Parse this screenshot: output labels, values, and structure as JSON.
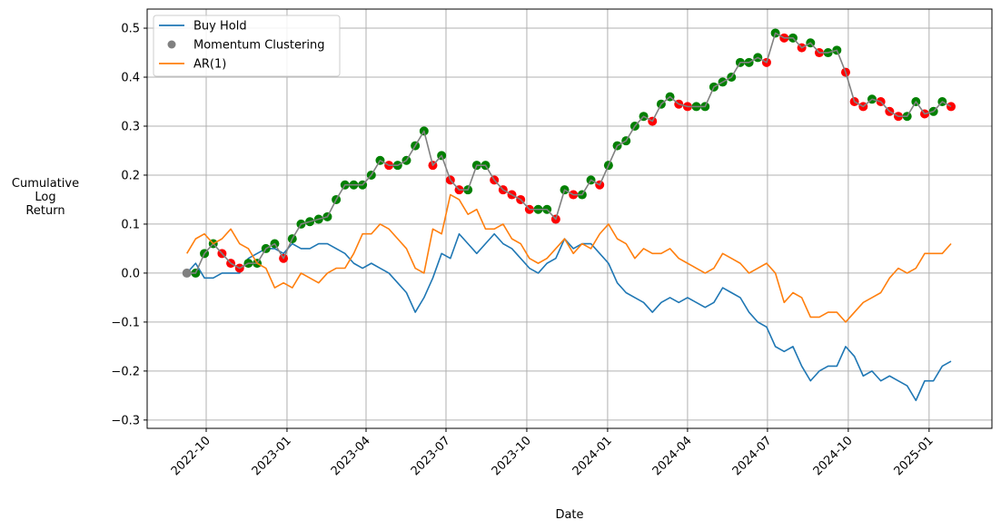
{
  "chart_data": {
    "type": "line",
    "title": "",
    "xlabel": "Date",
    "ylabel": "Cumulative\nLog\nReturn",
    "ylim": [
      -0.317,
      0.539
    ],
    "xlim": [
      "2022-08-20",
      "2025-02-10"
    ],
    "grid": true,
    "legend_position": "top-left",
    "start_date": "2022-09-09",
    "step_days": 10,
    "yticks": [
      -0.3,
      -0.2,
      -0.1,
      0.0,
      0.1,
      0.2,
      0.3,
      0.4,
      0.5
    ],
    "ytick_labels": [
      "−0.3",
      "−0.2",
      "−0.1",
      "0.0",
      "0.1",
      "0.2",
      "0.3",
      "0.4",
      "0.5"
    ],
    "xticks": [
      "2022-10-01",
      "2023-01-01",
      "2023-04-01",
      "2023-07-01",
      "2023-10-01",
      "2024-01-01",
      "2024-04-01",
      "2024-07-01",
      "2024-10-01",
      "2025-01-01"
    ],
    "xtick_labels": [
      "2022-10",
      "2023-01",
      "2023-04",
      "2023-07",
      "2023-10",
      "2024-01",
      "2024-04",
      "2024-07",
      "2024-10",
      "2025-01"
    ],
    "marker_colors": {
      "up": "#008000",
      "down": "#ff0000"
    },
    "series": [
      {
        "name": "Buy Hold",
        "kind": "line",
        "color": "#1f77b4",
        "values": [
          0.0,
          0.02,
          -0.01,
          -0.01,
          0.0,
          0.0,
          0.0,
          0.03,
          0.04,
          0.05,
          0.05,
          0.04,
          0.06,
          0.05,
          0.05,
          0.06,
          0.06,
          0.05,
          0.04,
          0.02,
          0.01,
          0.02,
          0.01,
          0.0,
          -0.02,
          -0.04,
          -0.08,
          -0.05,
          -0.01,
          0.04,
          0.03,
          0.08,
          0.06,
          0.04,
          0.06,
          0.08,
          0.06,
          0.05,
          0.03,
          0.01,
          0.0,
          0.02,
          0.03,
          0.07,
          0.05,
          0.06,
          0.06,
          0.04,
          0.02,
          -0.02,
          -0.04,
          -0.05,
          -0.06,
          -0.08,
          -0.06,
          -0.05,
          -0.06,
          -0.05,
          -0.06,
          -0.07,
          -0.06,
          -0.03,
          -0.04,
          -0.05,
          -0.08,
          -0.1,
          -0.11,
          -0.15,
          -0.16,
          -0.15,
          -0.19,
          -0.22,
          -0.2,
          -0.19,
          -0.19,
          -0.15,
          -0.17,
          -0.21,
          -0.2,
          -0.22,
          -0.21,
          -0.22,
          -0.23,
          -0.26,
          -0.22,
          -0.22,
          -0.19,
          -0.18
        ]
      },
      {
        "name": "Momentum Clustering",
        "kind": "line+markers",
        "color": "#808080",
        "values": [
          0.0,
          0.0,
          0.04,
          0.06,
          0.04,
          0.02,
          0.01,
          0.02,
          0.02,
          0.05,
          0.06,
          0.03,
          0.07,
          0.1,
          0.105,
          0.11,
          0.115,
          0.15,
          0.18,
          0.18,
          0.18,
          0.2,
          0.23,
          0.22,
          0.22,
          0.23,
          0.26,
          0.29,
          0.22,
          0.24,
          0.19,
          0.17,
          0.17,
          0.22,
          0.22,
          0.19,
          0.17,
          0.16,
          0.15,
          0.13,
          0.13,
          0.13,
          0.11,
          0.17,
          0.16,
          0.16,
          0.19,
          0.18,
          0.22,
          0.26,
          0.27,
          0.3,
          0.32,
          0.31,
          0.345,
          0.36,
          0.345,
          0.34,
          0.34,
          0.34,
          0.38,
          0.39,
          0.4,
          0.43,
          0.43,
          0.44,
          0.43,
          0.49,
          0.48,
          0.48,
          0.46,
          0.47,
          0.45,
          0.45,
          0.455,
          0.41,
          0.35,
          0.34,
          0.355,
          0.35,
          0.33,
          0.32,
          0.32,
          0.35,
          0.325,
          0.33,
          0.35,
          0.34
        ]
      },
      {
        "name": "AR(1)",
        "kind": "line",
        "color": "#ff7f0e",
        "values": [
          0.04,
          0.07,
          0.08,
          0.06,
          0.07,
          0.09,
          0.06,
          0.05,
          0.02,
          0.01,
          -0.03,
          -0.02,
          -0.03,
          0.0,
          -0.01,
          -0.02,
          0.0,
          0.01,
          0.01,
          0.04,
          0.08,
          0.08,
          0.1,
          0.09,
          0.07,
          0.05,
          0.01,
          0.0,
          0.09,
          0.08,
          0.16,
          0.15,
          0.12,
          0.13,
          0.09,
          0.09,
          0.1,
          0.07,
          0.06,
          0.03,
          0.02,
          0.03,
          0.05,
          0.07,
          0.04,
          0.06,
          0.05,
          0.08,
          0.1,
          0.07,
          0.06,
          0.03,
          0.05,
          0.04,
          0.04,
          0.05,
          0.03,
          0.02,
          0.01,
          0.0,
          0.01,
          0.04,
          0.03,
          0.02,
          0.0,
          0.01,
          0.02,
          0.0,
          -0.06,
          -0.04,
          -0.05,
          -0.09,
          -0.09,
          -0.08,
          -0.08,
          -0.1,
          -0.08,
          -0.06,
          -0.05,
          -0.04,
          -0.01,
          0.01,
          0.0,
          0.01,
          0.04,
          0.04,
          0.04,
          0.06
        ]
      }
    ]
  }
}
